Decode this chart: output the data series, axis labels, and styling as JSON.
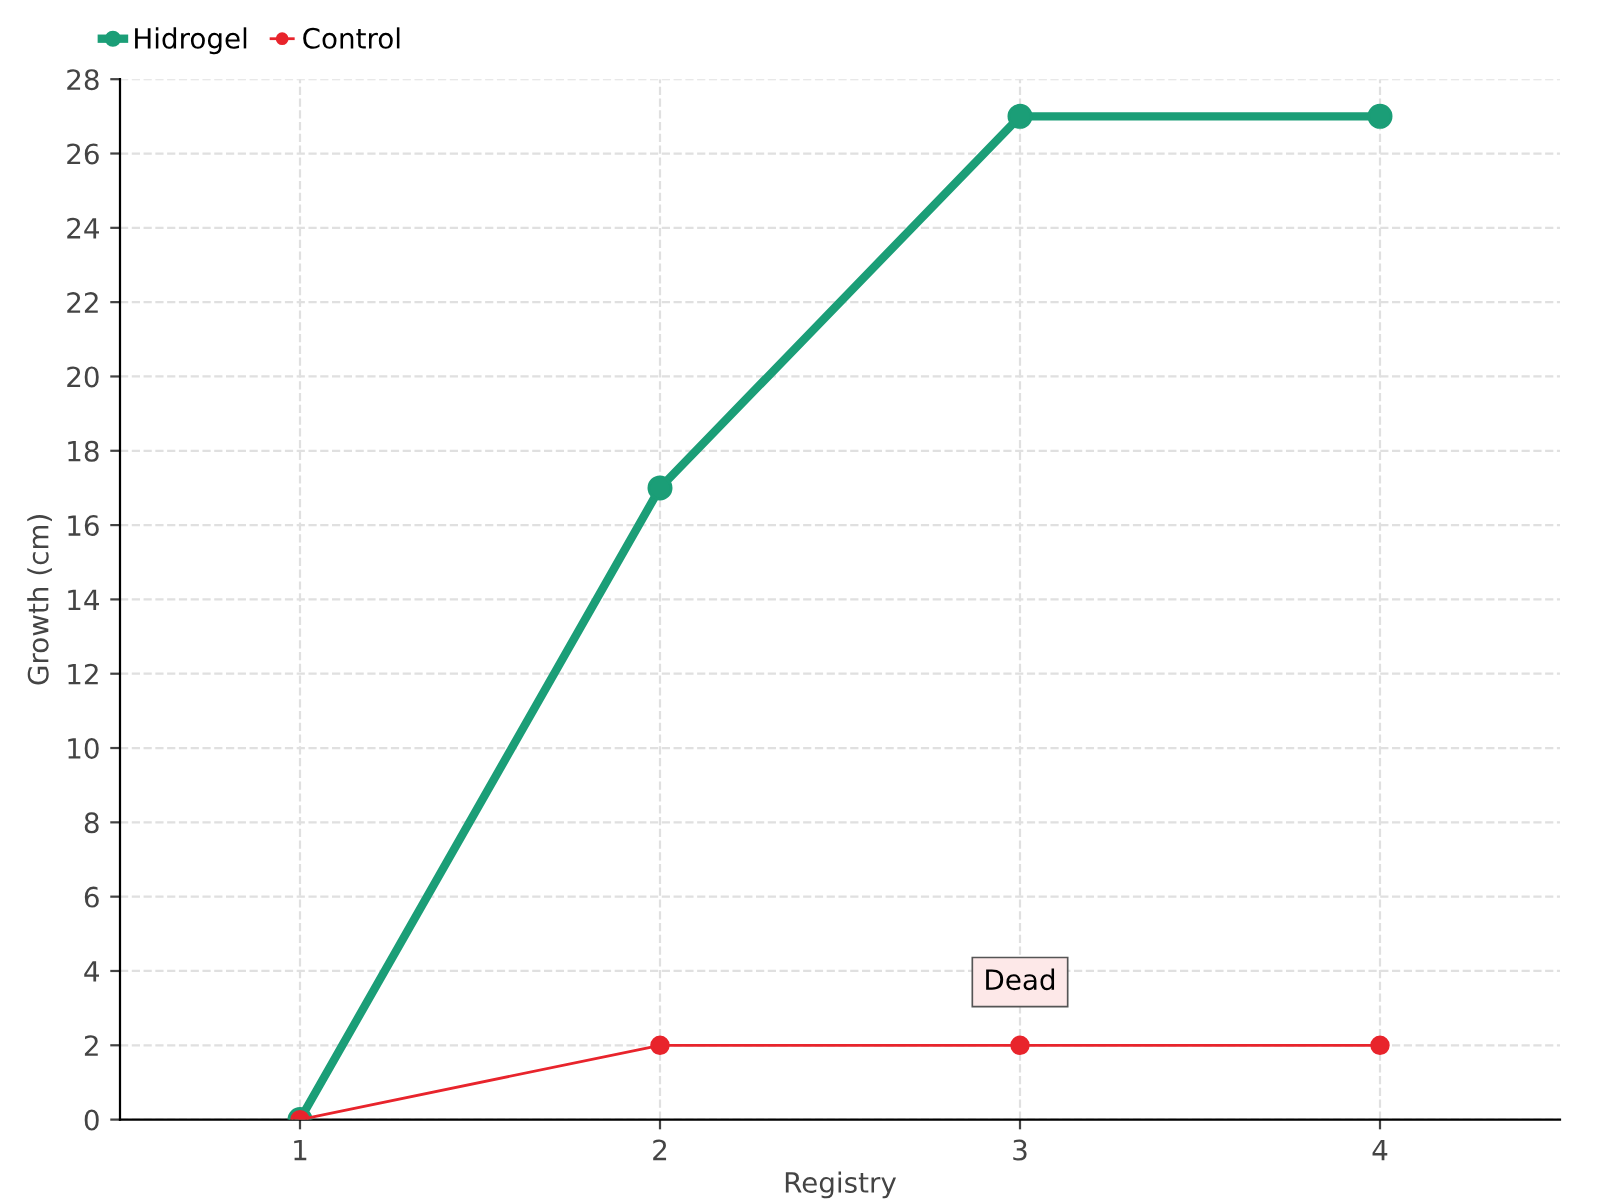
{
  "chart_data": {
    "type": "line",
    "xlabel": "Registry",
    "ylabel": "Growth (cm)",
    "x": [
      1,
      2,
      3,
      4
    ],
    "series": [
      {
        "name": "Hidrogel",
        "color": "#1b9e77",
        "values": [
          0,
          17,
          27,
          27
        ]
      },
      {
        "name": "Control",
        "color": "#e8242c",
        "values": [
          0,
          2,
          2,
          2
        ]
      }
    ],
    "xlim": [
      0.5,
      4.5
    ],
    "xticks": [
      1,
      2,
      3,
      4
    ],
    "ylim": [
      0,
      28
    ],
    "yticks": [
      0,
      2,
      4,
      6,
      8,
      10,
      12,
      14,
      16,
      18,
      20,
      22,
      24,
      26,
      28
    ],
    "grid": true,
    "legend": "top left",
    "marker": "circle",
    "annotations": [
      {
        "text": "Dead",
        "x": 3,
        "y": 2
      }
    ]
  }
}
